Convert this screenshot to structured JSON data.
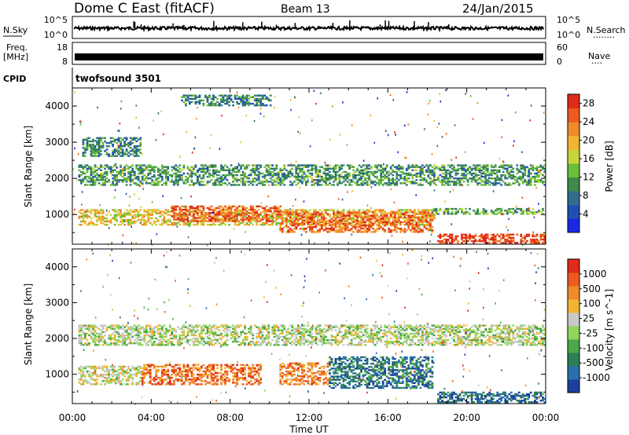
{
  "header": {
    "station": "Dome C East (fitACF)",
    "beam": "Beam 13",
    "date": "24/Jan/2015"
  },
  "panels": {
    "nsky": {
      "label": "N.Sky",
      "ticks_left": [
        "10^5",
        "10^0"
      ],
      "ticks_right": [
        "10^5",
        "10^0"
      ],
      "right_label": "N.Search",
      "right_dots": "········"
    },
    "freq": {
      "label_top": "Freq.",
      "label_bottom": "[MHz]",
      "ticks_left": [
        "18",
        "8"
      ],
      "ticks_right": [
        "60",
        "0"
      ],
      "right_label": "Nave",
      "right_dots": "····"
    },
    "cpid": {
      "label": "CPID",
      "program": "twofsound 3501"
    }
  },
  "chart_data": [
    {
      "type": "heatmap",
      "title": "",
      "xlabel": "Time UT",
      "ylabel": "Slant Range [km]",
      "x_ticks": [
        "00:00",
        "04:00",
        "08:00",
        "12:00",
        "16:00",
        "20:00",
        "00:00"
      ],
      "x_range_hours": [
        0,
        24
      ],
      "y_ticks": [
        1000,
        2000,
        3000,
        4000
      ],
      "y_range_km": [
        180,
        4500
      ],
      "colorbar": {
        "label": "Power [dB]",
        "ticks": [
          "4",
          "8",
          "12",
          "16",
          "20",
          "24",
          "28"
        ],
        "range": [
          0,
          30
        ],
        "colors": [
          "#1a28e6",
          "#1f4fb3",
          "#2f6e8a",
          "#3d8a4a",
          "#6bbf3a",
          "#c8d43a",
          "#f2b531",
          "#f08a2a",
          "#ec5a1f",
          "#e02b1a"
        ]
      },
      "regions": [
        {
          "t": [
            0.3,
            24
          ],
          "r": [
            1800,
            2350
          ],
          "level": 0.35
        },
        {
          "t": [
            0.3,
            18.3
          ],
          "r": [
            700,
            1150
          ],
          "level": 0.6
        },
        {
          "t": [
            5,
            10.5
          ],
          "r": [
            800,
            1250
          ],
          "level": 0.85
        },
        {
          "t": [
            10.5,
            18.3
          ],
          "r": [
            500,
            1050
          ],
          "level": 0.8
        },
        {
          "t": [
            18.5,
            24
          ],
          "r": [
            200,
            450
          ],
          "level": 0.9
        },
        {
          "t": [
            18.3,
            24
          ],
          "r": [
            1000,
            1150
          ],
          "level": 0.4
        },
        {
          "t": [
            0.5,
            3.5
          ],
          "r": [
            2600,
            3100
          ],
          "level": 0.3
        },
        {
          "t": [
            5.5,
            10
          ],
          "r": [
            4000,
            4300
          ],
          "level": 0.3
        }
      ]
    },
    {
      "type": "heatmap",
      "title": "",
      "xlabel": "Time UT",
      "ylabel": "Slant Range [km]",
      "x_ticks": [
        "00:00",
        "04:00",
        "08:00",
        "12:00",
        "16:00",
        "20:00",
        "00:00"
      ],
      "x_range_hours": [
        0,
        24
      ],
      "y_ticks": [
        1000,
        2000,
        3000,
        4000
      ],
      "y_range_km": [
        180,
        4500
      ],
      "colorbar": {
        "label": "Velocity [m s^-1]",
        "ticks": [
          "1000",
          "500",
          "100",
          "25",
          "-25",
          "-100",
          "-500",
          "-1000"
        ],
        "colors": [
          "#1c3f9c",
          "#2a6fae",
          "#2f7d58",
          "#4aa84a",
          "#8fd65a",
          "#c8c8c8",
          "#f2b531",
          "#f08a2a",
          "#ec5a1f",
          "#e02b1a"
        ]
      },
      "regions": [
        {
          "t": [
            0.3,
            24
          ],
          "r": [
            1800,
            2350
          ],
          "level": 0.5
        },
        {
          "t": [
            3.5,
            9.5
          ],
          "r": [
            700,
            1250
          ],
          "level": 0.8
        },
        {
          "t": [
            10.5,
            13
          ],
          "r": [
            700,
            1300
          ],
          "level": 0.75
        },
        {
          "t": [
            13,
            18.3
          ],
          "r": [
            600,
            1500
          ],
          "level": 0.2
        },
        {
          "t": [
            18.5,
            24
          ],
          "r": [
            200,
            500
          ],
          "level": 0.15
        },
        {
          "t": [
            0.3,
            3.5
          ],
          "r": [
            700,
            1200
          ],
          "level": 0.55
        }
      ]
    }
  ]
}
